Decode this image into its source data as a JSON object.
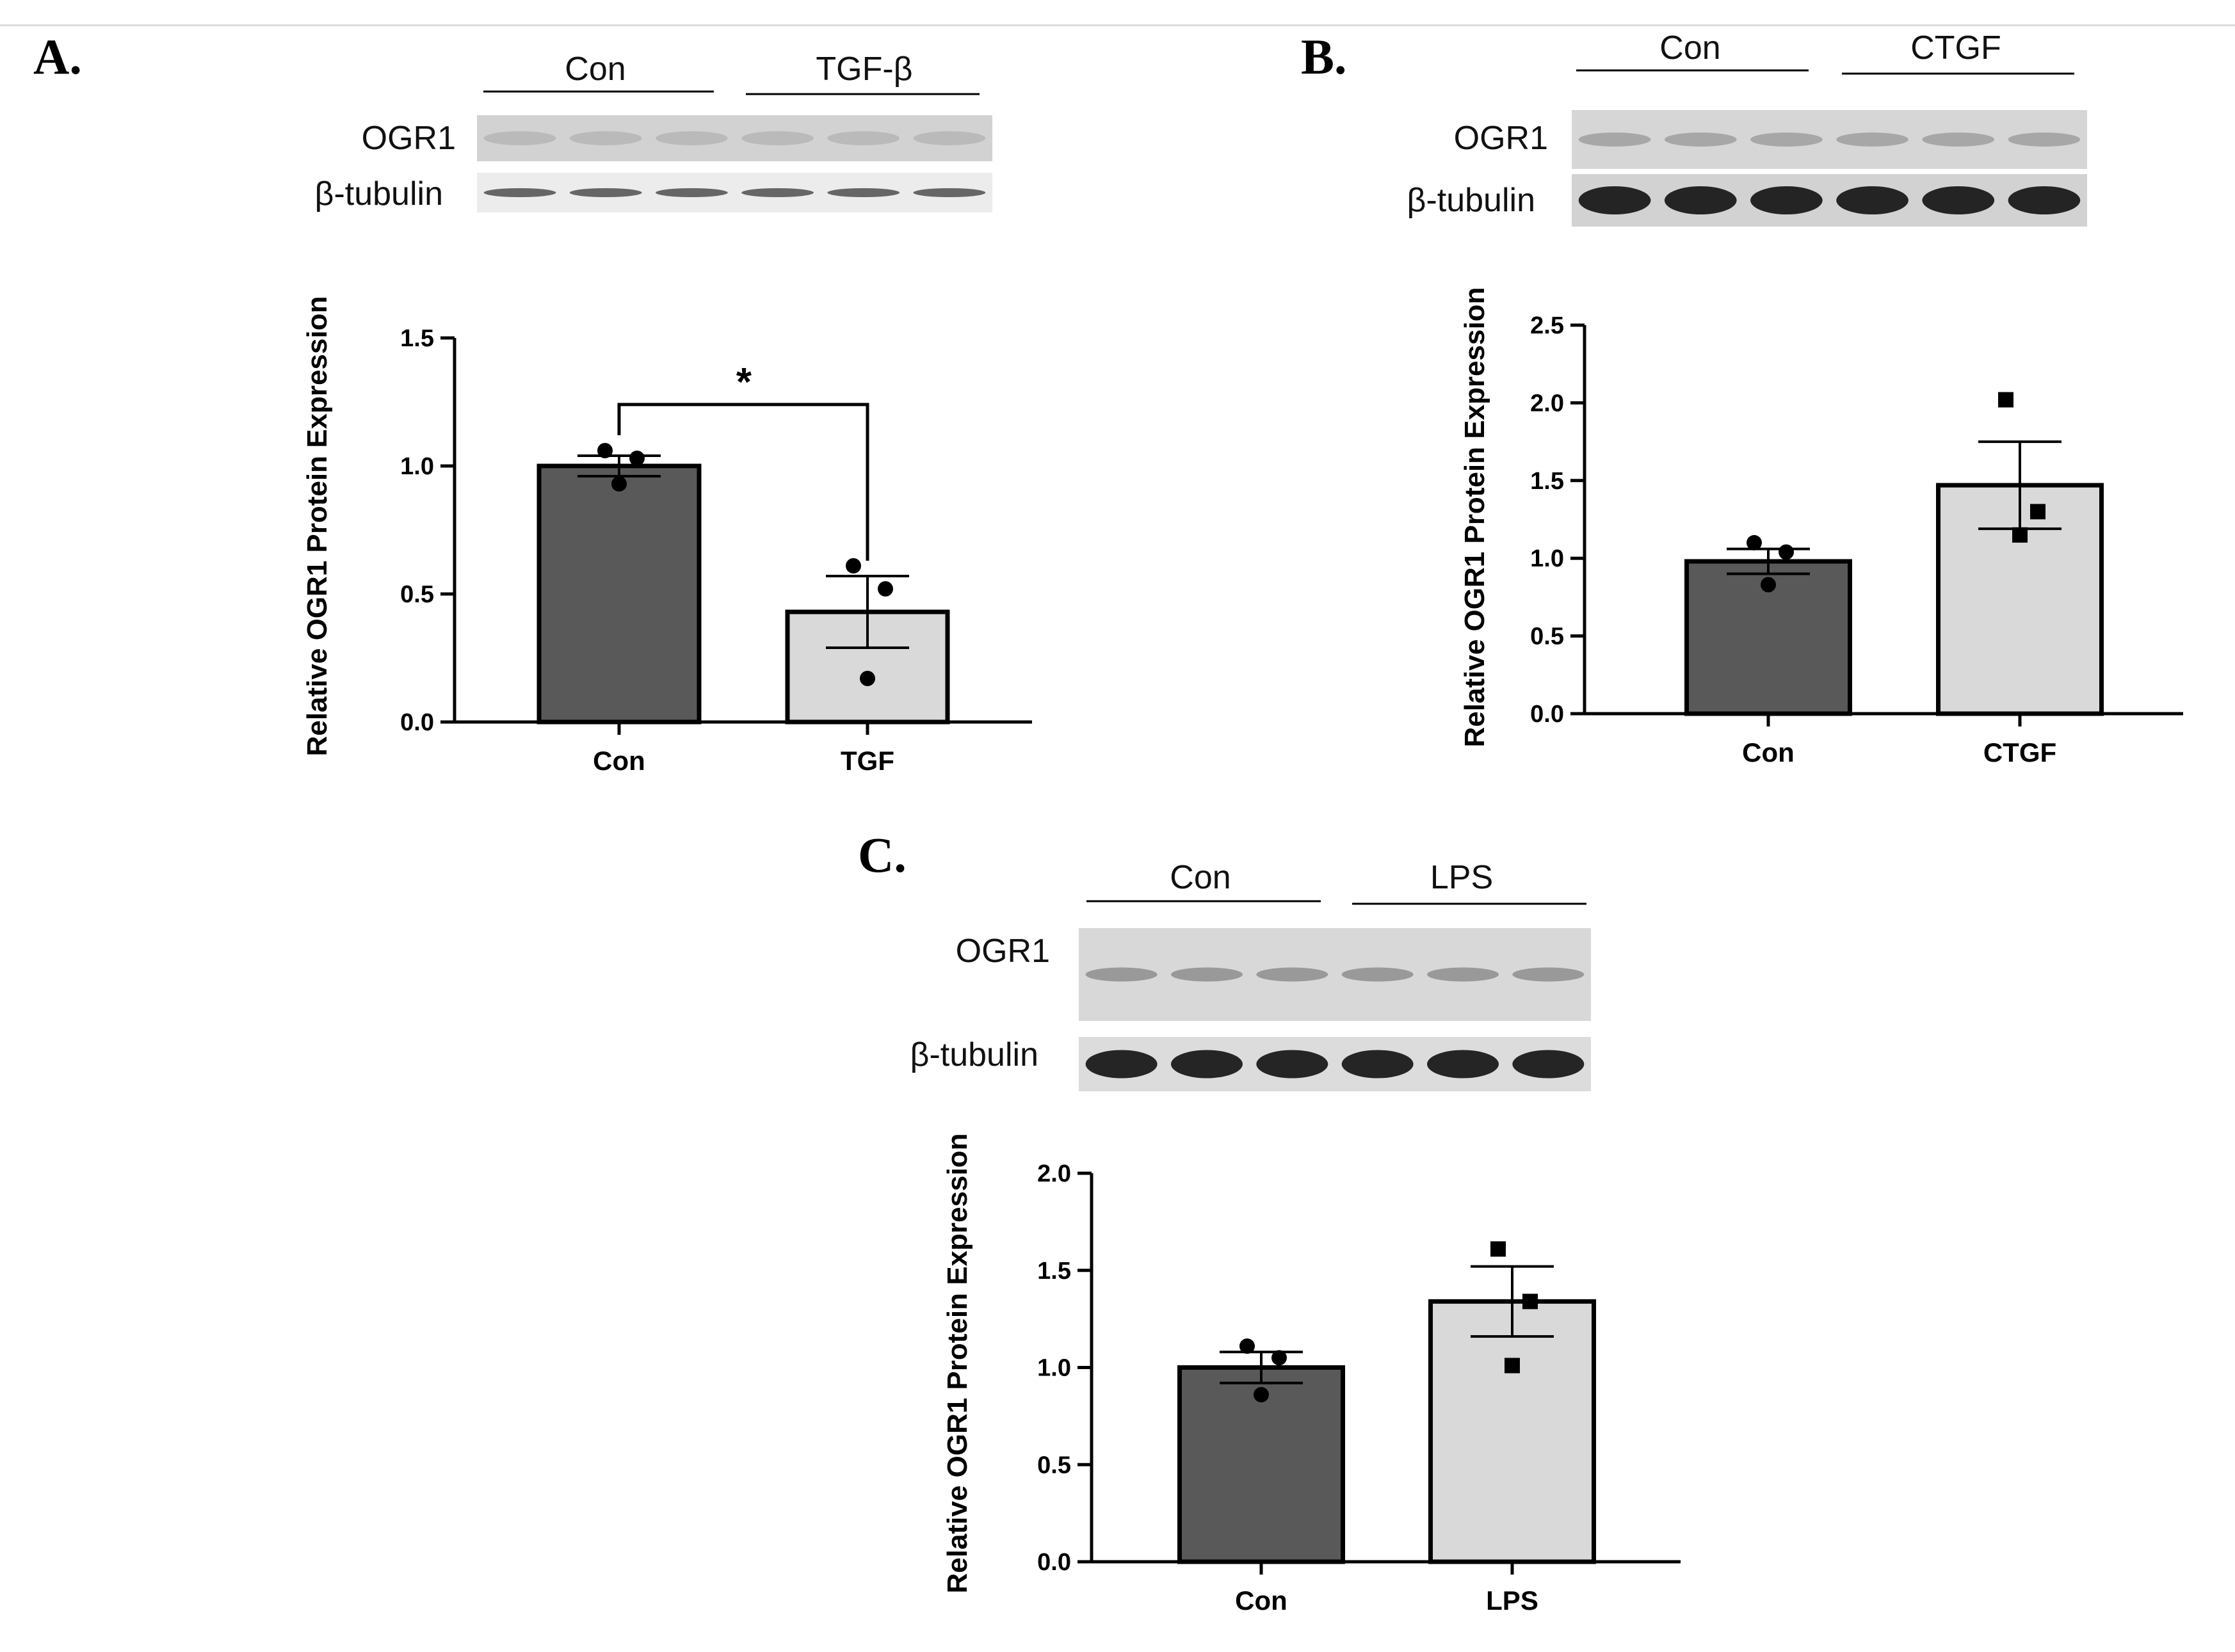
{
  "panels": [
    {
      "letter": "A.",
      "blot": {
        "groups": [
          "Con",
          "TGF-β"
        ],
        "rows": [
          {
            "label": "OGR1",
            "band_color": "#8f8f8f",
            "band_opacity": 0.35
          },
          {
            "label": "β-tubulin",
            "band_color": "#3a3a3a",
            "band_opacity": 0.75
          }
        ]
      },
      "significance": "*",
      "chart_data": {
        "type": "bar",
        "ylabel": "Relative OGR1 Protein Expression",
        "categories": [
          "Con",
          "TGF"
        ],
        "values": [
          1.0,
          0.43
        ],
        "errors": [
          0.04,
          0.14
        ],
        "points": [
          [
            1.06,
            1.03,
            0.93
          ],
          [
            0.61,
            0.52,
            0.17
          ]
        ],
        "point_shapes": [
          "circle",
          "circle"
        ],
        "bar_colors": [
          "#595959",
          "#d9d9d9"
        ],
        "ylim": [
          0,
          1.5
        ],
        "yticks": [
          "0.0",
          "0.5",
          "1.0",
          "1.5"
        ]
      }
    },
    {
      "letter": "B.",
      "blot": {
        "groups": [
          "Con",
          "CTGF"
        ],
        "rows": [
          {
            "label": "OGR1",
            "band_color": "#6f6f6f",
            "band_opacity": 0.45
          },
          {
            "label": "β-tubulin",
            "band_color": "#111111",
            "band_opacity": 0.9
          }
        ]
      },
      "significance": "",
      "chart_data": {
        "type": "bar",
        "ylabel": "Relative OGR1 Protein Expression",
        "categories": [
          "Con",
          "CTGF"
        ],
        "values": [
          0.98,
          1.47
        ],
        "errors": [
          0.08,
          0.28
        ],
        "points": [
          [
            1.1,
            1.04,
            0.83
          ],
          [
            2.02,
            1.3,
            1.15
          ]
        ],
        "point_shapes": [
          "circle",
          "square"
        ],
        "bar_colors": [
          "#595959",
          "#d9d9d9"
        ],
        "ylim": [
          0,
          2.5
        ],
        "yticks": [
          "0.0",
          "0.5",
          "1.0",
          "1.5",
          "2.0",
          "2.5"
        ]
      }
    },
    {
      "letter": "C.",
      "blot": {
        "groups": [
          "Con",
          "LPS"
        ],
        "rows": [
          {
            "label": "OGR1",
            "band_color": "#5a5a5a",
            "band_opacity": 0.5
          },
          {
            "label": "β-tubulin",
            "band_color": "#111111",
            "band_opacity": 0.9
          }
        ]
      },
      "significance": "",
      "chart_data": {
        "type": "bar",
        "ylabel": "Relative OGR1 Protein Expression",
        "categories": [
          "Con",
          "LPS"
        ],
        "values": [
          1.0,
          1.34
        ],
        "errors": [
          0.08,
          0.18
        ],
        "points": [
          [
            1.11,
            1.05,
            0.86
          ],
          [
            1.61,
            1.34,
            1.01
          ]
        ],
        "point_shapes": [
          "circle",
          "square"
        ],
        "bar_colors": [
          "#595959",
          "#d9d9d9"
        ],
        "ylim": [
          0,
          2.0
        ],
        "yticks": [
          "0.0",
          "0.5",
          "1.0",
          "1.5",
          "2.0"
        ]
      }
    }
  ]
}
